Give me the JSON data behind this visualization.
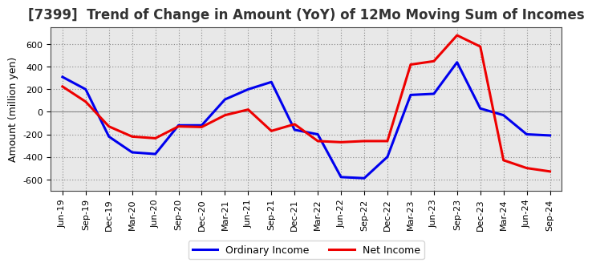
{
  "title": "[7399]  Trend of Change in Amount (YoY) of 12Mo Moving Sum of Incomes",
  "ylabel": "Amount (million yen)",
  "x_labels": [
    "Jun-19",
    "Sep-19",
    "Dec-19",
    "Mar-20",
    "Jun-20",
    "Sep-20",
    "Dec-20",
    "Mar-21",
    "Jun-21",
    "Sep-21",
    "Dec-21",
    "Mar-22",
    "Jun-22",
    "Sep-22",
    "Dec-22",
    "Mar-23",
    "Jun-23",
    "Sep-23",
    "Dec-23",
    "Mar-24",
    "Jun-24",
    "Sep-24"
  ],
  "ordinary_income": [
    310,
    200,
    -220,
    -360,
    -375,
    -120,
    -120,
    110,
    200,
    265,
    -160,
    -200,
    -580,
    -590,
    -400,
    150,
    160,
    440,
    30,
    -30,
    -200,
    -210
  ],
  "net_income": [
    225,
    90,
    -130,
    -220,
    -235,
    -130,
    -135,
    -30,
    20,
    -170,
    -110,
    -260,
    -270,
    -260,
    -260,
    420,
    450,
    680,
    580,
    -430,
    -500,
    -530
  ],
  "ordinary_income_color": "#0000ee",
  "net_income_color": "#ee0000",
  "ylim": [
    -700,
    750
  ],
  "yticks": [
    -600,
    -400,
    -200,
    0,
    200,
    400,
    600
  ],
  "plot_bg_color": "#e8e8e8",
  "fig_bg_color": "#ffffff",
  "legend_labels": [
    "Ordinary Income",
    "Net Income"
  ],
  "line_width": 2.2,
  "title_fontsize": 12,
  "axis_label_fontsize": 9,
  "tick_fontsize": 8,
  "legend_fontsize": 9
}
